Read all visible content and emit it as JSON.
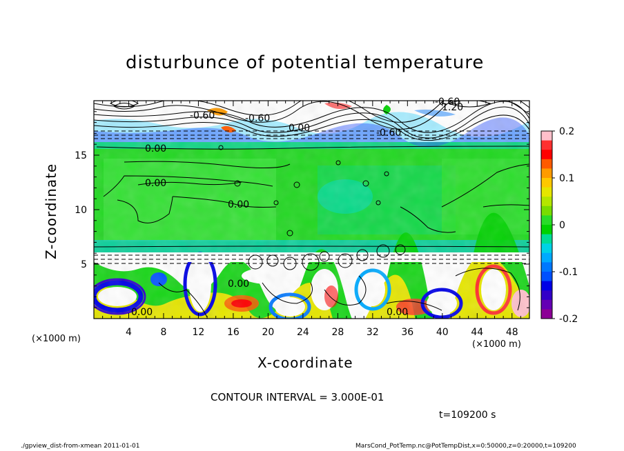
{
  "title": "disturbunce of potential temperature",
  "footer": {
    "left": "./gpview_dist-from-xmean   2011-01-01",
    "right": "MarsCond_PotTemp.nc@PotTempDist,x=0:50000,z=0:20000,t=109200"
  },
  "contour_note": "CONTOUR INTERVAL = 3.000E-01",
  "time_label": "t=109200 s",
  "chart_data": {
    "type": "heatmap",
    "title": "disturbunce of potential temperature",
    "xlabel": "X-coordinate",
    "ylabel": "Z-coordinate",
    "x_unit": "(×1000 m)",
    "x_unit_right": "(×1000 m)",
    "xlim": [
      0,
      50
    ],
    "ylim": [
      0,
      20
    ],
    "x_ticks": [
      4,
      8,
      12,
      16,
      20,
      24,
      28,
      32,
      36,
      40,
      44,
      48
    ],
    "y_ticks": [
      5,
      10,
      15
    ],
    "colorbar": {
      "ticks": [
        "0.2",
        "0.1",
        "0",
        "-0.1",
        "-0.2"
      ],
      "range": [
        -0.2,
        0.2
      ],
      "colors": [
        "#ffc0cb",
        "#ff3030",
        "#ff0000",
        "#ff5a00",
        "#ff9b00",
        "#ffc800",
        "#e6e600",
        "#b4e600",
        "#78dc00",
        "#28dc28",
        "#00d200",
        "#00dc96",
        "#00d2e6",
        "#00aaff",
        "#0078ff",
        "#0050ff",
        "#0000e6",
        "#3200c8",
        "#6400b4",
        "#8c0096"
      ]
    },
    "contour_labels": [
      "-0.60",
      "-0.60",
      "1.20",
      "-0.60",
      "0.00",
      "-0.60",
      "0.00",
      "0.00",
      "0.00",
      "0.00",
      "0.00",
      "0.00"
    ],
    "contour_interval": "CONTOUR INTERVAL = 3.000E-01",
    "time": "t=109200 s"
  }
}
